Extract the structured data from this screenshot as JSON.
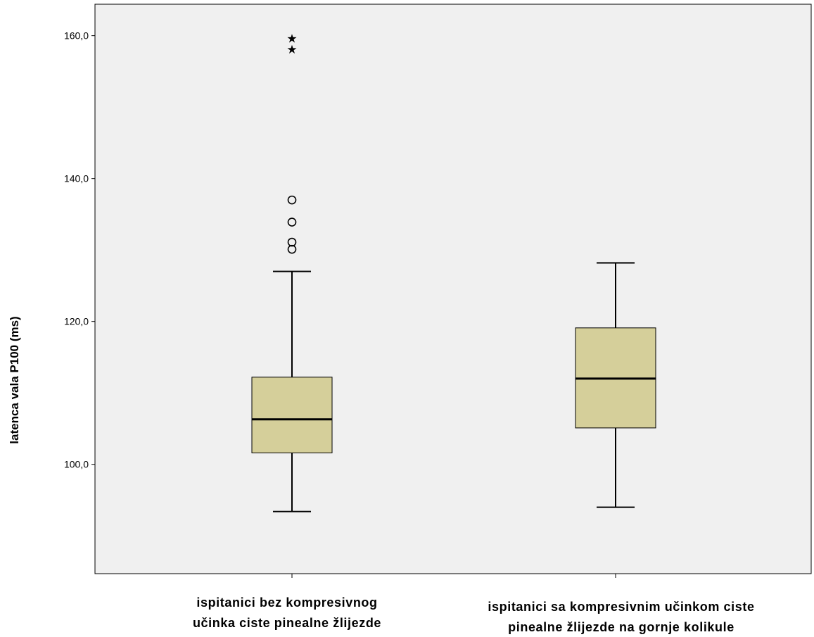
{
  "chart_data": {
    "type": "boxplot",
    "ylabel": "latenca vala P100 (ms)",
    "xlabel": "",
    "ylim": [
      84.7,
      164.4
    ],
    "yticks": [
      100,
      120,
      140,
      160
    ],
    "ytick_labels": [
      "100,0",
      "120,0",
      "140,0",
      "160,0"
    ],
    "grid": false,
    "colors": {
      "box_fill": "#d5cf9a",
      "plot_bg": "#f0f0f0",
      "stroke": "#000000"
    },
    "categories": [
      {
        "label_lines": [
          "ispitanici bez kompresivnog",
          "učinka ciste pinealne žlijezde"
        ],
        "whisker_low": 93.4,
        "q1": 101.6,
        "median": 106.3,
        "q3": 112.2,
        "whisker_high": 127.0,
        "outliers": [
          137.0,
          133.9,
          131.1,
          130.1
        ],
        "extremes": [
          159.6,
          158.1
        ]
      },
      {
        "label_lines": [
          "ispitanici sa kompresivnim učinkom ciste",
          "pinealne žlijezde na gornje kolikule"
        ],
        "whisker_low": 94.0,
        "q1": 105.1,
        "median": 112.0,
        "q3": 119.1,
        "whisker_high": 128.2,
        "outliers": [],
        "extremes": []
      }
    ]
  }
}
